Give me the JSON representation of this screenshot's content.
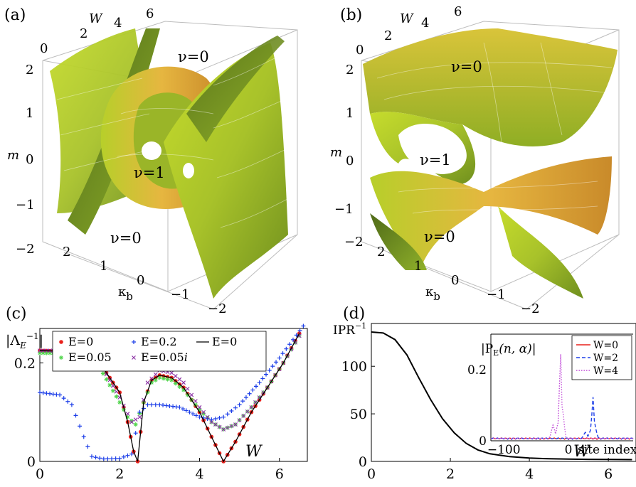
{
  "panel_a": {
    "label": "(a)",
    "axis_w": "W",
    "axis_w_ticks": [
      "0",
      "2",
      "4",
      "6"
    ],
    "axis_m": "m",
    "axis_m_ticks": [
      "2",
      "1",
      "0",
      "−1",
      "−2"
    ],
    "axis_k": "κ",
    "axis_k_sub": "b",
    "axis_k_ticks": [
      "2",
      "1",
      "0",
      "−1",
      "−2"
    ],
    "region_top": "ν=0",
    "region_mid": "ν=1",
    "region_bot": "ν=0"
  },
  "panel_b": {
    "label": "(b)",
    "axis_w": "W",
    "axis_w_ticks": [
      "0",
      "2",
      "4",
      "6"
    ],
    "axis_m": "m",
    "axis_m_ticks": [
      "2",
      "1",
      "0",
      "−1",
      "−2"
    ],
    "axis_k": "κ",
    "axis_k_sub": "b",
    "axis_k_ticks": [
      "2",
      "1",
      "0",
      "−1",
      "−2"
    ],
    "region_top": "ν=0",
    "region_mid": "ν=1",
    "region_bot": "ν=0"
  },
  "panel_c": {
    "label": "(c)",
    "ylabel": "|Λ",
    "ylabel_sub": "E",
    "ylabel_sup": "−1",
    "ylabel_end": "|",
    "xlabel": "W",
    "chart_data": {
      "type": "scatter",
      "xlim": [
        0,
        6.7
      ],
      "ylim": [
        0,
        0.27
      ],
      "x_ticks": [
        "0",
        "2",
        "4",
        "6"
      ],
      "y_ticks": [
        "0",
        "0.2"
      ],
      "legend_placement": "top",
      "series": [
        {
          "name": "E=0",
          "marker": "dot",
          "color": "#e8211c",
          "x": [
            0,
            0.5,
            1.0,
            1.5,
            2.0,
            2.2,
            2.35,
            2.45,
            2.6,
            2.8,
            3.0,
            3.3,
            3.6,
            4.0,
            4.3,
            4.6,
            4.9,
            5.3,
            5.7,
            6.1,
            6.5
          ],
          "y": [
            0.225,
            0.224,
            0.22,
            0.2,
            0.14,
            0.08,
            0.02,
            0.0,
            0.12,
            0.165,
            0.175,
            0.17,
            0.15,
            0.1,
            0.05,
            0.0,
            0.04,
            0.1,
            0.15,
            0.2,
            0.26
          ]
        },
        {
          "name": "E=0.05",
          "marker": "star",
          "color": "#4fd44a",
          "x": [
            0,
            0.5,
            1.0,
            1.5,
            2.0,
            2.2,
            2.4,
            2.6,
            2.8,
            3.0,
            3.3,
            3.6,
            4.0,
            4.3,
            4.6,
            4.9,
            5.3,
            5.7,
            6.1,
            6.5
          ],
          "y": [
            0.22,
            0.22,
            0.21,
            0.19,
            0.12,
            0.09,
            0.075,
            0.12,
            0.16,
            0.17,
            0.165,
            0.145,
            0.105,
            0.08,
            0.065,
            0.075,
            0.11,
            0.15,
            0.2,
            0.255
          ]
        },
        {
          "name": "E=0.2",
          "marker": "plus",
          "color": "#1c3ee8",
          "x": [
            0,
            0.5,
            0.8,
            1.1,
            1.3,
            1.6,
            2.0,
            2.3,
            2.5,
            2.7,
            3.0,
            3.5,
            4.0,
            4.3,
            4.6,
            5.0,
            5.5,
            6.0,
            6.6
          ],
          "y": [
            0.14,
            0.135,
            0.115,
            0.05,
            0.01,
            0.005,
            0.006,
            0.015,
            0.1,
            0.115,
            0.115,
            0.11,
            0.09,
            0.085,
            0.09,
            0.115,
            0.16,
            0.21,
            0.275
          ]
        },
        {
          "name": "E=0.05i",
          "marker": "x",
          "color": "#8a2fa3",
          "x": [
            0,
            0.5,
            1.0,
            1.5,
            2.0,
            2.3,
            2.5,
            2.7,
            3.0,
            3.3,
            3.6,
            4.0,
            4.3,
            4.6,
            4.9,
            5.3,
            5.7,
            6.1,
            6.5
          ],
          "y": [
            0.225,
            0.225,
            0.215,
            0.2,
            0.13,
            0.08,
            0.09,
            0.16,
            0.185,
            0.18,
            0.16,
            0.11,
            0.08,
            0.065,
            0.075,
            0.11,
            0.15,
            0.2,
            0.255
          ]
        },
        {
          "name": "E=0",
          "marker": "line",
          "color": "#000000",
          "x": [
            0,
            0.5,
            1.0,
            1.5,
            2.0,
            2.2,
            2.35,
            2.45,
            2.6,
            2.8,
            3.0,
            3.3,
            3.6,
            4.0,
            4.3,
            4.6,
            4.9,
            5.3,
            5.7,
            6.1,
            6.5
          ],
          "y": [
            0.225,
            0.224,
            0.22,
            0.2,
            0.14,
            0.08,
            0.02,
            0.0,
            0.12,
            0.165,
            0.175,
            0.17,
            0.15,
            0.1,
            0.05,
            0.0,
            0.04,
            0.1,
            0.15,
            0.2,
            0.26
          ]
        }
      ]
    }
  },
  "panel_d": {
    "label": "(d)",
    "ylabel": "IPR",
    "ylabel_sup": "−1",
    "xlabel": "W",
    "chart_data": {
      "type": "line",
      "xlim": [
        0,
        6.7
      ],
      "ylim": [
        0,
        145
      ],
      "x_ticks": [
        "0",
        "2",
        "4",
        "6"
      ],
      "y_ticks": [
        "0",
        "50",
        "100"
      ],
      "series": [
        {
          "color": "#000000",
          "x": [
            0,
            0.3,
            0.6,
            0.9,
            1.2,
            1.5,
            1.8,
            2.1,
            2.4,
            2.7,
            3.0,
            3.5,
            4.0,
            4.5,
            5.0,
            5.5,
            6.0,
            6.6
          ],
          "y": [
            136,
            135,
            128,
            112,
            88,
            65,
            45,
            30,
            19,
            12,
            8,
            5,
            3.5,
            2.8,
            2.4,
            2.2,
            2.0,
            1.9
          ]
        }
      ]
    },
    "inset": {
      "ylabel": "|P",
      "ylabel_sub": "E",
      "ylabel_rest": "(n, α)|",
      "xlabel": "site index",
      "chart_data": {
        "type": "line",
        "xlim": [
          -120,
          100
        ],
        "ylim": [
          0,
          0.3
        ],
        "x_ticks": [
          "−100",
          "0"
        ],
        "y_ticks": [
          "0",
          "0.2"
        ],
        "legend_placement": "top-right",
        "series": [
          {
            "name": "W=0",
            "color": "#e8211c",
            "style": "solid"
          },
          {
            "name": "W=2",
            "color": "#1c3ee8",
            "style": "dashed",
            "peak_x": 38,
            "peak_y": 0.12
          },
          {
            "name": "W=4",
            "color": "#c04ad8",
            "style": "dotted",
            "peak_x": -12,
            "peak_y": 0.25
          }
        ]
      }
    }
  }
}
